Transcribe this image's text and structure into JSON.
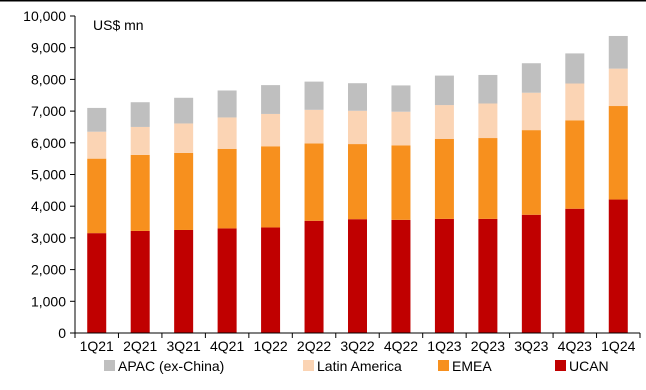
{
  "chart_data": {
    "type": "bar",
    "stacked": true,
    "title": "",
    "unit_label": "US$ mn",
    "categories": [
      "1Q21",
      "2Q21",
      "3Q21",
      "4Q21",
      "1Q22",
      "2Q22",
      "3Q22",
      "4Q22",
      "1Q23",
      "2Q23",
      "3Q23",
      "4Q23",
      "1Q24"
    ],
    "series": [
      {
        "name": "UCAN",
        "color": "#C00000",
        "values": [
          3150,
          3220,
          3250,
          3300,
          3330,
          3540,
          3590,
          3570,
          3600,
          3600,
          3730,
          3920,
          4210
        ]
      },
      {
        "name": "EMEA",
        "color": "#F7901E",
        "values": [
          2350,
          2400,
          2430,
          2510,
          2560,
          2440,
          2370,
          2350,
          2520,
          2550,
          2670,
          2790,
          2950
        ]
      },
      {
        "name": "Latin America",
        "color": "#FBD4B4",
        "values": [
          850,
          880,
          930,
          990,
          1020,
          1060,
          1050,
          1060,
          1070,
          1090,
          1180,
          1160,
          1180
        ]
      },
      {
        "name": "APAC (ex-China)",
        "color": "#BFBFBF",
        "values": [
          750,
          780,
          810,
          850,
          910,
          890,
          870,
          830,
          930,
          900,
          930,
          950,
          1030
        ]
      }
    ],
    "legend_order": [
      "APAC (ex-China)",
      "Latin America",
      "EMEA",
      "UCAN"
    ],
    "ylim": [
      0,
      10000
    ],
    "yticks": [
      0,
      1000,
      2000,
      3000,
      4000,
      5000,
      6000,
      7000,
      8000,
      9000,
      10000
    ],
    "ytick_labels": [
      "0",
      "1,000",
      "2,000",
      "3,000",
      "4,000",
      "5,000",
      "6,000",
      "7,000",
      "8,000",
      "9,000",
      "10,000"
    ],
    "legend_position": "bottom",
    "grid": false
  }
}
